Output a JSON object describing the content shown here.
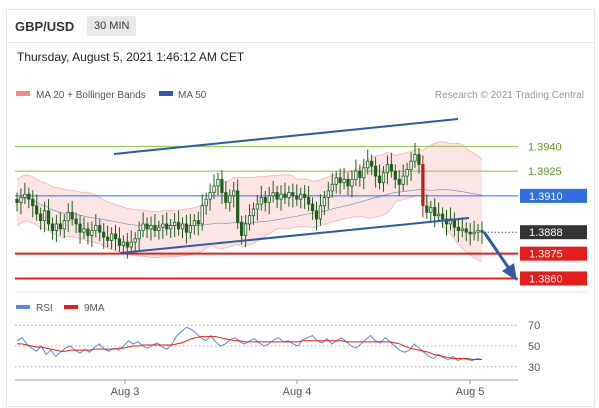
{
  "header": {
    "pair": "GBP/USD",
    "timeframe": "30 MIN",
    "timestamp": "Thursday, August 5, 2021 1:46:12 AM CET"
  },
  "legend": {
    "ma20": "MA 20 + Bollinger Bands",
    "ma50": "MA 50",
    "credit": "Research © 2021 Trading Central"
  },
  "rsi_legend": {
    "rsi": "RSI",
    "ma9": "9MA"
  },
  "colors": {
    "ma20_bands": "#f28a8a",
    "band_fill": "#fde0e0",
    "ma50": "#2e5aa6",
    "candle": "#1f5f1f",
    "candle_down": "#b22222",
    "channel": "#2e5aa6",
    "level_green": "#8cbf3f",
    "level_blue": "#2f6fe0",
    "level_red": "#e51d1d",
    "current": "#333333",
    "rsi": "#5b8bd6",
    "ma9": "#e51d1d",
    "arrow": "#2e5aa6"
  },
  "chart_data": {
    "type": "candlestick",
    "symbol": "GBP/USD",
    "interval": "30 MIN",
    "x_ticks": [
      "Aug 3",
      "Aug 4",
      "Aug 5"
    ],
    "y_range": [
      1.3853,
      1.3962
    ],
    "levels": [
      {
        "value": "1.3940",
        "kind": "resistance",
        "color": "#8cbf3f"
      },
      {
        "value": "1.3925",
        "kind": "resistance",
        "color": "#8cbf3f"
      },
      {
        "value": "1.3910",
        "kind": "pivot",
        "color": "#2f6fe0"
      },
      {
        "value": "1.3888",
        "kind": "current",
        "color": "#333333"
      },
      {
        "value": "1.3875",
        "kind": "support",
        "color": "#e51d1d"
      },
      {
        "value": "1.3860",
        "kind": "support",
        "color": "#e51d1d"
      }
    ],
    "closes": [
      1.3906,
      1.3909,
      1.3911,
      1.3908,
      1.3904,
      1.3899,
      1.3895,
      1.3901,
      1.3893,
      1.3889,
      1.3893,
      1.389,
      1.3895,
      1.39,
      1.3896,
      1.3893,
      1.3888,
      1.389,
      1.3886,
      1.3889,
      1.3892,
      1.3888,
      1.3885,
      1.3883,
      1.3887,
      1.3884,
      1.388,
      1.3882,
      1.3879,
      1.3882,
      1.3884,
      1.3889,
      1.3893,
      1.389,
      1.3892,
      1.3889,
      1.3891,
      1.3893,
      1.389,
      1.3892,
      1.3894,
      1.389,
      1.3893,
      1.3888,
      1.3892,
      1.3895,
      1.3893,
      1.3904,
      1.3908,
      1.3912,
      1.3916,
      1.392,
      1.3912,
      1.3906,
      1.391,
      1.3913,
      1.3894,
      1.3886,
      1.3893,
      1.3898,
      1.3902,
      1.3905,
      1.3909,
      1.3906,
      1.391,
      1.3912,
      1.3908,
      1.3911,
      1.3909,
      1.3912,
      1.391,
      1.3908,
      1.3911,
      1.3909,
      1.3905,
      1.3901,
      1.3896,
      1.3904,
      1.3909,
      1.3913,
      1.3917,
      1.3921,
      1.3918,
      1.392,
      1.3916,
      1.392,
      1.3925,
      1.3921,
      1.3927,
      1.3931,
      1.3928,
      1.3922,
      1.3918,
      1.3924,
      1.3929,
      1.3925,
      1.392,
      1.3917,
      1.3922,
      1.3926,
      1.3931,
      1.3935,
      1.3929,
      1.3904,
      1.39,
      1.3903,
      1.3898,
      1.3899,
      1.3896,
      1.3893,
      1.3896,
      1.3891,
      1.3889,
      1.389,
      1.3888,
      1.3887,
      1.3888,
      1.3889,
      1.3888
    ],
    "rsi": {
      "ticks": [
        70,
        50,
        30
      ],
      "range": [
        25,
        75
      ],
      "rsi_values": [
        55,
        58,
        52,
        48,
        45,
        50,
        42,
        46,
        40,
        44,
        48,
        50,
        46,
        43,
        47,
        44,
        49,
        52,
        47,
        45,
        48,
        46,
        50,
        55,
        52,
        54,
        50,
        48,
        51,
        53,
        49,
        47,
        52,
        60,
        64,
        68,
        66,
        62,
        58,
        55,
        60,
        54,
        50,
        52,
        56,
        58,
        54,
        52,
        55,
        57,
        53,
        50,
        52,
        56,
        58,
        54,
        55,
        52,
        50,
        56,
        58,
        60,
        55,
        53,
        57,
        52,
        55,
        58,
        54,
        50,
        48,
        52,
        56,
        60,
        55,
        53,
        58,
        54,
        50,
        46,
        44,
        46,
        52,
        48,
        44,
        40,
        38,
        42,
        39,
        37,
        40,
        36,
        38,
        37,
        36,
        38,
        37
      ],
      "ma9_values": [
        52,
        52,
        51,
        50,
        49,
        49,
        48,
        47,
        46,
        45,
        45,
        46,
        46,
        46,
        46,
        46,
        47,
        47,
        47,
        47,
        47,
        48,
        48,
        49,
        50,
        50,
        51,
        51,
        51,
        51,
        51,
        51,
        51,
        52,
        53,
        55,
        57,
        58,
        59,
        59,
        59,
        59,
        58,
        57,
        56,
        55,
        55,
        54,
        54,
        54,
        54,
        54,
        54,
        54,
        54,
        54,
        54,
        54,
        54,
        55,
        55,
        55,
        55,
        55,
        55,
        55,
        55,
        55,
        54,
        54,
        54,
        54,
        54,
        54,
        54,
        54,
        54,
        54,
        53,
        52,
        50,
        48,
        47,
        46,
        45,
        44,
        42,
        41,
        40,
        39,
        38,
        38,
        38,
        38,
        37,
        37,
        37
      ]
    }
  }
}
